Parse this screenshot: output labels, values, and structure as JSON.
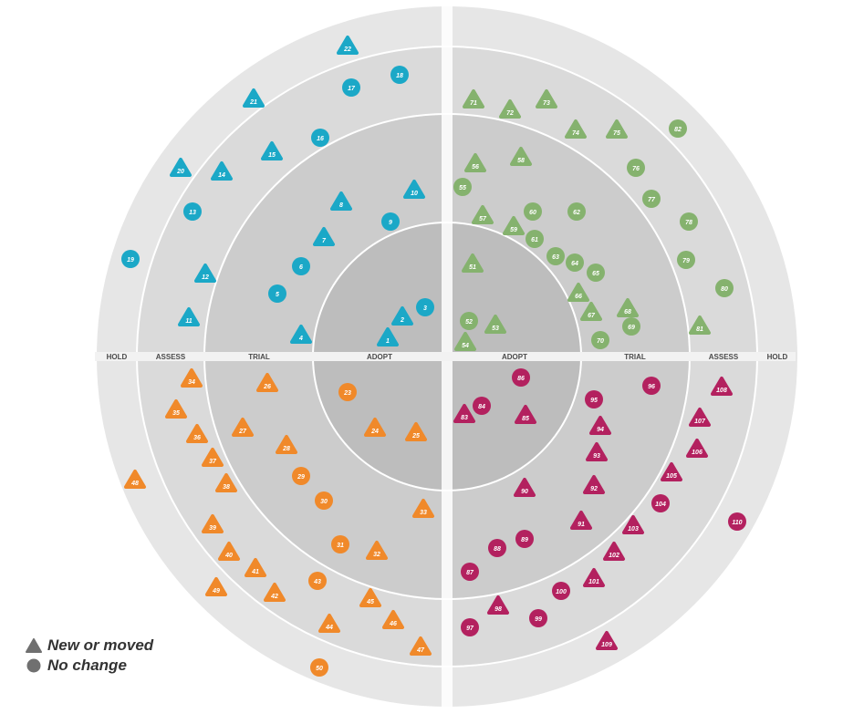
{
  "rings": [
    {
      "name": "ADOPT",
      "r": 1
    },
    {
      "name": "TRIAL",
      "r": 2
    },
    {
      "name": "ASSESS",
      "r": 3
    },
    {
      "name": "HOLD",
      "r": 4
    }
  ],
  "quadrant_colors": {
    "top-left": "#1ba8c7",
    "top-right": "#85b26e",
    "bottom-left": "#f0892a",
    "bottom-right": "#b3215f"
  },
  "ring_shades": [
    "#bdbdbd",
    "#cccccc",
    "#dadada",
    "#e6e6e6"
  ],
  "legend": {
    "triangle_label": "New or moved",
    "circle_label": "No change",
    "triangle_icon": "triangle-icon",
    "circle_icon": "circle-icon"
  },
  "blips": [
    {
      "n": "1",
      "q": "tl",
      "s": "t"
    },
    {
      "n": "2",
      "q": "tl",
      "s": "t"
    },
    {
      "n": "3",
      "q": "tl",
      "s": "c"
    },
    {
      "n": "4",
      "q": "tl",
      "s": "t"
    },
    {
      "n": "5",
      "q": "tl",
      "s": "c"
    },
    {
      "n": "6",
      "q": "tl",
      "s": "c"
    },
    {
      "n": "7",
      "q": "tl",
      "s": "t"
    },
    {
      "n": "8",
      "q": "tl",
      "s": "t"
    },
    {
      "n": "9",
      "q": "tl",
      "s": "c"
    },
    {
      "n": "10",
      "q": "tl",
      "s": "t"
    },
    {
      "n": "11",
      "q": "tl",
      "s": "t"
    },
    {
      "n": "12",
      "q": "tl",
      "s": "t"
    },
    {
      "n": "13",
      "q": "tl",
      "s": "c"
    },
    {
      "n": "14",
      "q": "tl",
      "s": "t"
    },
    {
      "n": "15",
      "q": "tl",
      "s": "t"
    },
    {
      "n": "16",
      "q": "tl",
      "s": "c"
    },
    {
      "n": "17",
      "q": "tl",
      "s": "c"
    },
    {
      "n": "18",
      "q": "tl",
      "s": "c"
    },
    {
      "n": "19",
      "q": "tl",
      "s": "c"
    },
    {
      "n": "20",
      "q": "tl",
      "s": "t"
    },
    {
      "n": "21",
      "q": "tl",
      "s": "t"
    },
    {
      "n": "22",
      "q": "tl",
      "s": "t"
    },
    {
      "n": "23",
      "q": "bl",
      "s": "c"
    },
    {
      "n": "24",
      "q": "bl",
      "s": "t"
    },
    {
      "n": "25",
      "q": "bl",
      "s": "t"
    },
    {
      "n": "26",
      "q": "bl",
      "s": "t"
    },
    {
      "n": "27",
      "q": "bl",
      "s": "t"
    },
    {
      "n": "28",
      "q": "bl",
      "s": "t"
    },
    {
      "n": "29",
      "q": "bl",
      "s": "c"
    },
    {
      "n": "30",
      "q": "bl",
      "s": "c"
    },
    {
      "n": "31",
      "q": "bl",
      "s": "c"
    },
    {
      "n": "32",
      "q": "bl",
      "s": "t"
    },
    {
      "n": "33",
      "q": "bl",
      "s": "t"
    },
    {
      "n": "34",
      "q": "bl",
      "s": "t"
    },
    {
      "n": "35",
      "q": "bl",
      "s": "t"
    },
    {
      "n": "36",
      "q": "bl",
      "s": "t"
    },
    {
      "n": "37",
      "q": "bl",
      "s": "t"
    },
    {
      "n": "38",
      "q": "bl",
      "s": "t"
    },
    {
      "n": "39",
      "q": "bl",
      "s": "t"
    },
    {
      "n": "40",
      "q": "bl",
      "s": "t"
    },
    {
      "n": "41",
      "q": "bl",
      "s": "t"
    },
    {
      "n": "42",
      "q": "bl",
      "s": "t"
    },
    {
      "n": "43",
      "q": "bl",
      "s": "c"
    },
    {
      "n": "44",
      "q": "bl",
      "s": "t"
    },
    {
      "n": "45",
      "q": "bl",
      "s": "t"
    },
    {
      "n": "46",
      "q": "bl",
      "s": "t"
    },
    {
      "n": "47",
      "q": "bl",
      "s": "t"
    },
    {
      "n": "48",
      "q": "bl",
      "s": "t"
    },
    {
      "n": "49",
      "q": "bl",
      "s": "t"
    },
    {
      "n": "50",
      "q": "bl",
      "s": "c"
    },
    {
      "n": "51",
      "q": "tr",
      "s": "t"
    },
    {
      "n": "52",
      "q": "tr",
      "s": "c"
    },
    {
      "n": "53",
      "q": "tr",
      "s": "t"
    },
    {
      "n": "54",
      "q": "tr",
      "s": "t"
    },
    {
      "n": "55",
      "q": "tr",
      "s": "c"
    },
    {
      "n": "56",
      "q": "tr",
      "s": "t"
    },
    {
      "n": "57",
      "q": "tr",
      "s": "t"
    },
    {
      "n": "58",
      "q": "tr",
      "s": "t"
    },
    {
      "n": "59",
      "q": "tr",
      "s": "t"
    },
    {
      "n": "60",
      "q": "tr",
      "s": "c"
    },
    {
      "n": "61",
      "q": "tr",
      "s": "c"
    },
    {
      "n": "62",
      "q": "tr",
      "s": "c"
    },
    {
      "n": "63",
      "q": "tr",
      "s": "c"
    },
    {
      "n": "64",
      "q": "tr",
      "s": "c"
    },
    {
      "n": "65",
      "q": "tr",
      "s": "c"
    },
    {
      "n": "66",
      "q": "tr",
      "s": "t"
    },
    {
      "n": "67",
      "q": "tr",
      "s": "t"
    },
    {
      "n": "68",
      "q": "tr",
      "s": "t"
    },
    {
      "n": "69",
      "q": "tr",
      "s": "c"
    },
    {
      "n": "70",
      "q": "tr",
      "s": "c"
    },
    {
      "n": "71",
      "q": "tr",
      "s": "t"
    },
    {
      "n": "72",
      "q": "tr",
      "s": "t"
    },
    {
      "n": "73",
      "q": "tr",
      "s": "t"
    },
    {
      "n": "74",
      "q": "tr",
      "s": "t"
    },
    {
      "n": "75",
      "q": "tr",
      "s": "t"
    },
    {
      "n": "76",
      "q": "tr",
      "s": "c"
    },
    {
      "n": "77",
      "q": "tr",
      "s": "c"
    },
    {
      "n": "78",
      "q": "tr",
      "s": "c"
    },
    {
      "n": "79",
      "q": "tr",
      "s": "c"
    },
    {
      "n": "80",
      "q": "tr",
      "s": "c"
    },
    {
      "n": "81",
      "q": "tr",
      "s": "t"
    },
    {
      "n": "82",
      "q": "tr",
      "s": "c"
    },
    {
      "n": "83",
      "q": "br",
      "s": "t"
    },
    {
      "n": "84",
      "q": "br",
      "s": "c"
    },
    {
      "n": "85",
      "q": "br",
      "s": "t"
    },
    {
      "n": "86",
      "q": "br",
      "s": "c"
    },
    {
      "n": "87",
      "q": "br",
      "s": "c"
    },
    {
      "n": "88",
      "q": "br",
      "s": "c"
    },
    {
      "n": "89",
      "q": "br",
      "s": "c"
    },
    {
      "n": "90",
      "q": "br",
      "s": "t"
    },
    {
      "n": "91",
      "q": "br",
      "s": "t"
    },
    {
      "n": "92",
      "q": "br",
      "s": "t"
    },
    {
      "n": "93",
      "q": "br",
      "s": "t"
    },
    {
      "n": "94",
      "q": "br",
      "s": "t"
    },
    {
      "n": "95",
      "q": "br",
      "s": "c"
    },
    {
      "n": "96",
      "q": "br",
      "s": "c"
    },
    {
      "n": "97",
      "q": "br",
      "s": "c"
    },
    {
      "n": "98",
      "q": "br",
      "s": "t"
    },
    {
      "n": "99",
      "q": "br",
      "s": "c"
    },
    {
      "n": "100",
      "q": "br",
      "s": "c"
    },
    {
      "n": "101",
      "q": "br",
      "s": "t"
    },
    {
      "n": "102",
      "q": "br",
      "s": "t"
    },
    {
      "n": "103",
      "q": "br",
      "s": "t"
    },
    {
      "n": "104",
      "q": "br",
      "s": "c"
    },
    {
      "n": "105",
      "q": "br",
      "s": "t"
    },
    {
      "n": "106",
      "q": "br",
      "s": "t"
    },
    {
      "n": "107",
      "q": "br",
      "s": "t"
    },
    {
      "n": "108",
      "q": "br",
      "s": "t"
    },
    {
      "n": "109",
      "q": "br",
      "s": "t"
    },
    {
      "n": "110",
      "q": "br",
      "s": "c"
    }
  ]
}
